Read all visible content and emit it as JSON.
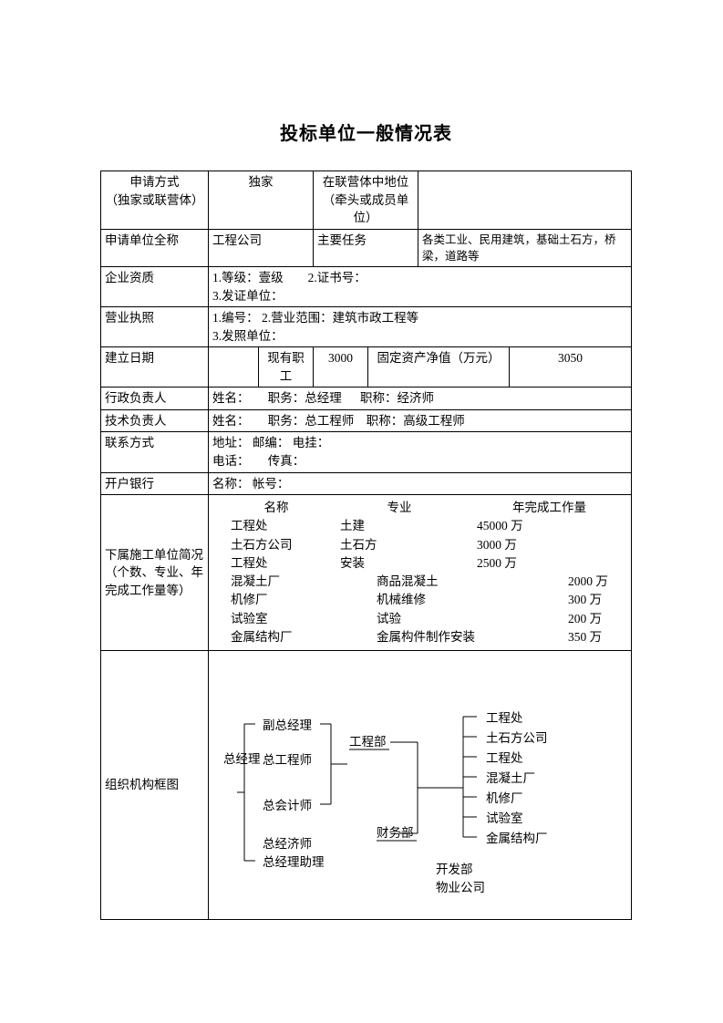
{
  "title": "投标单位一般情况表",
  "row1": {
    "label": "申请方式\n（独家或联营体）",
    "val1": "独家",
    "label2": "在联营体中地位\n（牵头或成员单位）",
    "val2": ""
  },
  "row2": {
    "label": "申请单位全称",
    "val1": "工程公司",
    "label2": "主要任务",
    "val2": "各类工业、民用建筑，基础土石方，桥梁，道路等"
  },
  "row3": {
    "label": "企业资质",
    "line1": "1.等级：壹级        2.证书号：",
    "line2": "3.发证单位："
  },
  "row4": {
    "label": "营业执照",
    "line1": "1.编号：   2.营业范围：建筑市政工程等",
    "line2": "3.发照单位："
  },
  "row5": {
    "label": "建立日期",
    "val1": "",
    "label2": "现有职工",
    "val2": "3000",
    "label3": "固定资产净值（万元）",
    "val3": "3050"
  },
  "row6": {
    "label": "行政负责人",
    "val": "姓名：      职务：总经理      职称：经济师"
  },
  "row7": {
    "label": "技术负责人",
    "val": "姓名：      职务：总工程师    职称：高级工程师"
  },
  "row8": {
    "label": "联系方式",
    "line1": "地址：  邮编：  电挂：",
    "line2": "电话：      传真："
  },
  "row9": {
    "label": "开户银行",
    "val": "名称：   帐号："
  },
  "sub": {
    "label": "下属施工单位简况（个数、专业、年完成工作量等）",
    "head": {
      "c1": "名称",
      "c2": "专业",
      "c3": "年完成工作量"
    },
    "rows": [
      {
        "c1": "工程处",
        "c2": "土建",
        "c3": "45000 万"
      },
      {
        "c1": "土石方公司",
        "c2": "土石方",
        "c3": "3000 万"
      },
      {
        "c1": "工程处",
        "c2": "安装",
        "c3": "2500 万"
      },
      {
        "c1": "混凝土厂",
        "c2": "商品混凝土",
        "c3": "2000 万"
      },
      {
        "c1": "机修厂",
        "c2": "机械维修",
        "c3": "300 万"
      },
      {
        "c1": "试验室",
        "c2": "试验",
        "c3": "200 万"
      },
      {
        "c1": "金属结构厂",
        "c2": "金属构件制作安装",
        "c3": "350 万"
      }
    ]
  },
  "org": {
    "label": "组织机构框图",
    "root": "总经理",
    "level2": [
      "副总经理",
      "总工程师",
      "总会计师",
      "总经济师",
      "总经理助理"
    ],
    "depts": [
      "工程部",
      "财务部",
      "开发部",
      "物业公司"
    ],
    "units": [
      "工程处",
      "土石方公司",
      "工程处",
      "混凝土厂",
      "机修厂",
      "试验室",
      "金属结构厂"
    ],
    "colors": {
      "line": "#000000",
      "bg": "#ffffff"
    },
    "line_width": 1,
    "fontsize": 13.5
  }
}
